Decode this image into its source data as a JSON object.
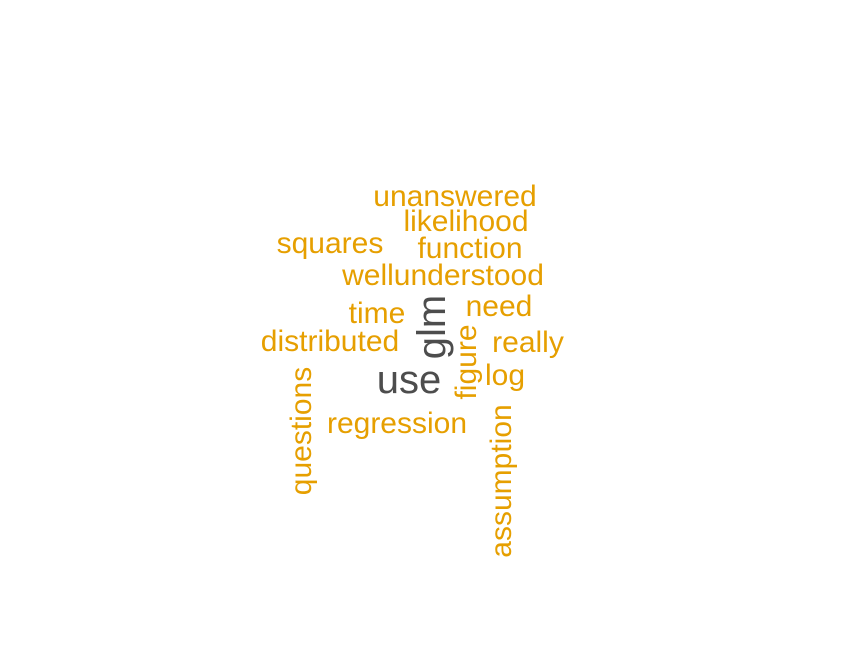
{
  "wordcloud": {
    "palette": {
      "primary": "#4d4d4d",
      "secondary": "#e69f00"
    },
    "words": [
      {
        "text": "use",
        "weight": "high",
        "color": "#4d4d4d"
      },
      {
        "text": "glm",
        "weight": "high",
        "color": "#4d4d4d"
      },
      {
        "text": "unanswered",
        "weight": "low",
        "color": "#e69f00"
      },
      {
        "text": "likelihood",
        "weight": "low",
        "color": "#e69f00"
      },
      {
        "text": "squares",
        "weight": "low",
        "color": "#e69f00"
      },
      {
        "text": "function",
        "weight": "low",
        "color": "#e69f00"
      },
      {
        "text": "wellunderstood",
        "weight": "low",
        "color": "#e69f00"
      },
      {
        "text": "need",
        "weight": "low",
        "color": "#e69f00"
      },
      {
        "text": "time",
        "weight": "low",
        "color": "#e69f00"
      },
      {
        "text": "distributed",
        "weight": "low",
        "color": "#e69f00"
      },
      {
        "text": "really",
        "weight": "low",
        "color": "#e69f00"
      },
      {
        "text": "figure",
        "weight": "low",
        "color": "#e69f00"
      },
      {
        "text": "log",
        "weight": "low",
        "color": "#e69f00"
      },
      {
        "text": "questions",
        "weight": "low",
        "color": "#e69f00"
      },
      {
        "text": "regression",
        "weight": "low",
        "color": "#e69f00"
      },
      {
        "text": "assumption",
        "weight": "low",
        "color": "#e69f00"
      }
    ]
  }
}
